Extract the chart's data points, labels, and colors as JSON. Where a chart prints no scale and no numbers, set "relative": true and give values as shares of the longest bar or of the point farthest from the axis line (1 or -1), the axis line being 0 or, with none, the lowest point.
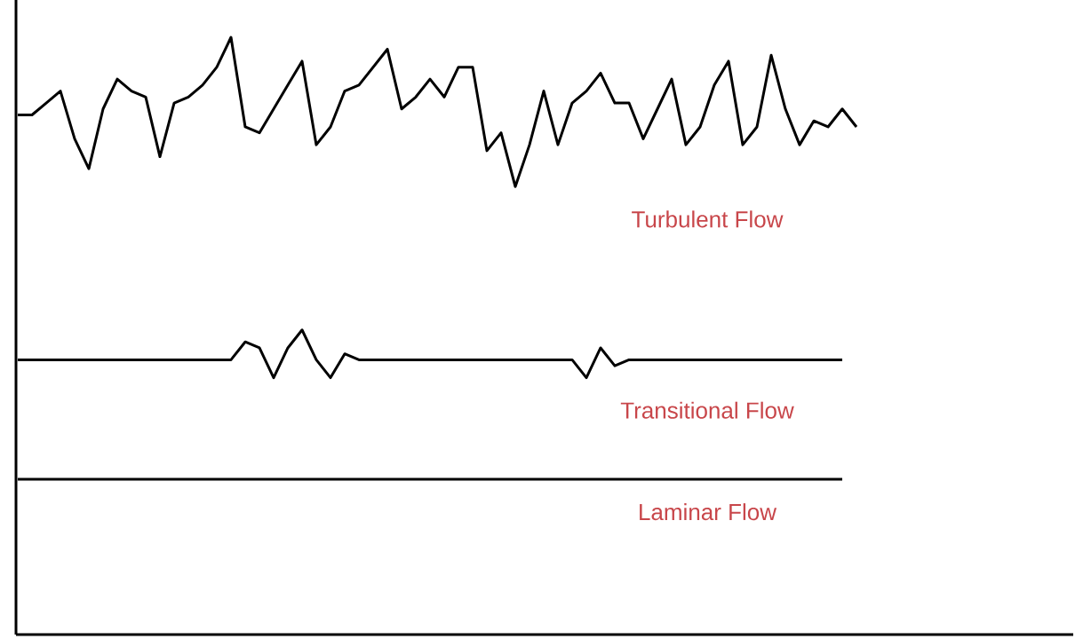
{
  "chart_data": {
    "type": "line",
    "relative": true,
    "legend": false,
    "marker": "none",
    "line_style": "solid",
    "categories": [
      null,
      null,
      null,
      null,
      null,
      null,
      null,
      null,
      null,
      null,
      null,
      null,
      null,
      null,
      null,
      null,
      null,
      null,
      null,
      null,
      null,
      null,
      null,
      null,
      null,
      null,
      null,
      null,
      null,
      null,
      null,
      null,
      null,
      null,
      null,
      null,
      null,
      null,
      null,
      null,
      null,
      null,
      null,
      null,
      null,
      null,
      null,
      null,
      null,
      null,
      null,
      null,
      null,
      null,
      null,
      null,
      null,
      null,
      null,
      null
    ],
    "series": [
      {
        "name": "Turbulent Flow",
        "color": "#000000",
        "values": [
          0.87,
          0.87,
          0.89,
          0.91,
          0.83,
          0.78,
          0.88,
          0.93,
          0.91,
          0.9,
          0.8,
          0.89,
          0.9,
          0.92,
          0.95,
          1.0,
          0.85,
          0.84,
          0.88,
          0.92,
          0.96,
          0.82,
          0.85,
          0.91,
          0.92,
          0.95,
          0.98,
          0.88,
          0.9,
          0.93,
          0.9,
          0.95,
          0.95,
          0.81,
          0.84,
          0.75,
          0.82,
          0.91,
          0.82,
          0.89,
          0.91,
          0.94,
          0.89,
          0.89,
          0.83,
          0.88,
          0.93,
          0.82,
          0.85,
          0.92,
          0.96,
          0.82,
          0.85,
          0.97,
          0.88,
          0.82,
          0.86,
          0.85,
          0.88,
          0.85
        ]
      },
      {
        "name": "Transitional Flow",
        "color": "#000000",
        "values": [
          0.46,
          0.46,
          0.46,
          0.46,
          0.46,
          0.46,
          0.46,
          0.46,
          0.46,
          0.46,
          0.46,
          0.46,
          0.46,
          0.46,
          0.46,
          0.46,
          0.49,
          0.48,
          0.43,
          0.48,
          0.51,
          0.46,
          0.43,
          0.47,
          0.46,
          0.46,
          0.46,
          0.46,
          0.46,
          0.46,
          0.46,
          0.46,
          0.46,
          0.46,
          0.46,
          0.46,
          0.46,
          0.46,
          0.46,
          0.46,
          0.43,
          0.48,
          0.45,
          0.46,
          0.46,
          0.46,
          0.46,
          0.46,
          0.46,
          0.46,
          0.46,
          0.46,
          0.46,
          0.46,
          0.46,
          0.46,
          0.46,
          0.46,
          0.46,
          null
        ]
      },
      {
        "name": "Laminar Flow",
        "color": "#000000",
        "values": [
          0.26,
          0.26,
          0.26,
          0.26,
          0.26,
          0.26,
          0.26,
          0.26,
          0.26,
          0.26,
          0.26,
          0.26,
          0.26,
          0.26,
          0.26,
          0.26,
          0.26,
          0.26,
          0.26,
          0.26,
          0.26,
          0.26,
          0.26,
          0.26,
          0.26,
          0.26,
          0.26,
          0.26,
          0.26,
          0.26,
          0.26,
          0.26,
          0.26,
          0.26,
          0.26,
          0.26,
          0.26,
          0.26,
          0.26,
          0.26,
          0.26,
          0.26,
          0.26,
          0.26,
          0.26,
          0.26,
          0.26,
          0.26,
          0.26,
          0.26,
          0.26,
          0.26,
          0.26,
          0.26,
          0.26,
          0.26,
          0.26,
          0.26,
          0.26,
          null
        ]
      }
    ]
  }
}
